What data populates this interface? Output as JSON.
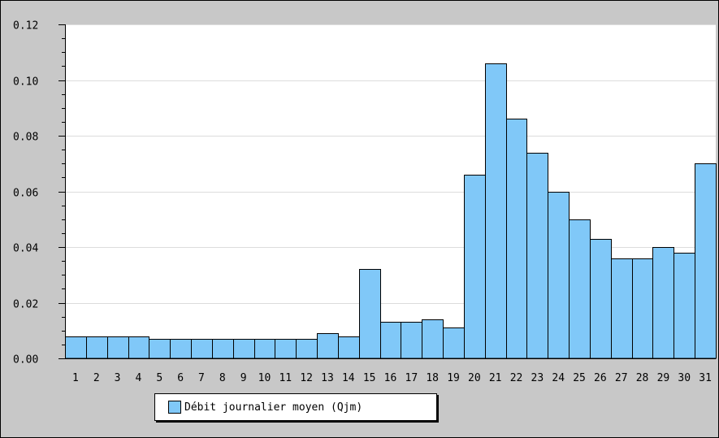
{
  "chart_data": {
    "type": "bar",
    "categories": [
      "1",
      "2",
      "3",
      "4",
      "5",
      "6",
      "7",
      "8",
      "9",
      "10",
      "11",
      "12",
      "13",
      "14",
      "15",
      "16",
      "17",
      "18",
      "19",
      "20",
      "21",
      "22",
      "23",
      "24",
      "25",
      "26",
      "27",
      "28",
      "29",
      "30",
      "31"
    ],
    "series": [
      {
        "name": "Débit journalier moyen (Qjm)",
        "values": [
          0.008,
          0.008,
          0.008,
          0.008,
          0.007,
          0.007,
          0.007,
          0.007,
          0.007,
          0.007,
          0.007,
          0.007,
          0.009,
          0.008,
          0.032,
          0.013,
          0.013,
          0.014,
          0.011,
          0.066,
          0.106,
          0.086,
          0.074,
          0.06,
          0.05,
          0.043,
          0.036,
          0.036,
          0.04,
          0.038,
          0.07
        ]
      }
    ],
    "yticks": [
      "0.00",
      "0.02",
      "0.04",
      "0.06",
      "0.08",
      "0.10",
      "0.12"
    ],
    "ylim": [
      0,
      0.12
    ],
    "grid": true,
    "legend_position": "bottom-left",
    "title": "",
    "xlabel": "",
    "ylabel": ""
  },
  "colors": {
    "bar_fill": "#80c8f8",
    "bar_stroke": "#000000",
    "plot_background": "#ffffff",
    "outer_background": "#c8c8c8",
    "grid": "#dcdcdc"
  }
}
